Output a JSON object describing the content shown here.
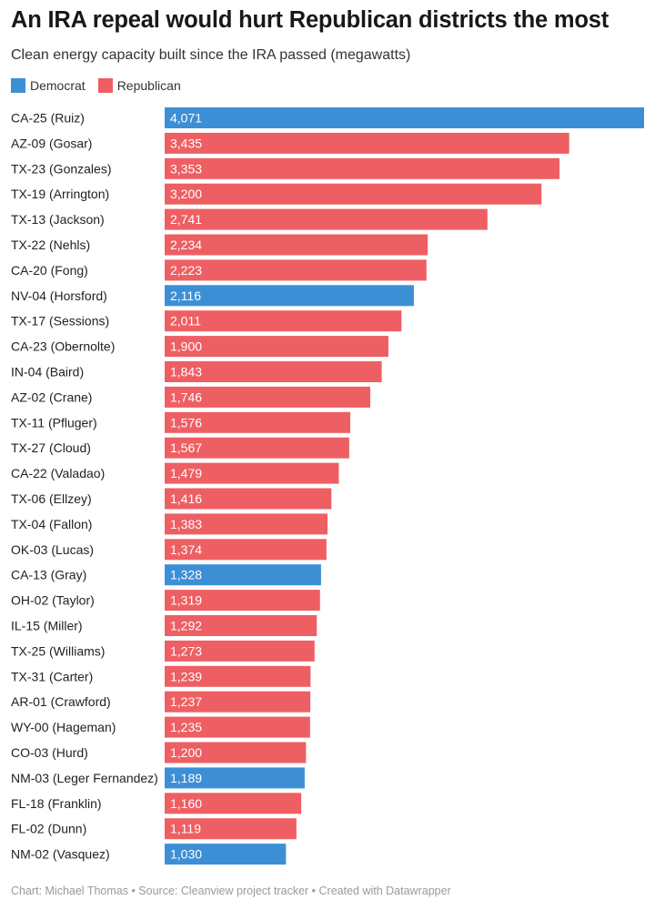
{
  "header": {
    "title": "An IRA repeal would hurt Republican districts the most",
    "subtitle": "Clean energy capacity built since the IRA passed (megawatts)"
  },
  "legend": [
    {
      "label": "Democrat",
      "color": "#3d8fd5"
    },
    {
      "label": "Republican",
      "color": "#ee5f63"
    }
  ],
  "footer": "Chart: Michael Thomas • Source: Cleanview project tracker • Created with Datawrapper",
  "chart_data": {
    "type": "bar",
    "orientation": "horizontal",
    "xlim": [
      0,
      4071
    ],
    "categories": [
      "CA-25 (Ruiz)",
      "AZ-09 (Gosar)",
      "TX-23 (Gonzales)",
      "TX-19 (Arrington)",
      "TX-13 (Jackson)",
      "TX-22 (Nehls)",
      "CA-20 (Fong)",
      "NV-04 (Horsford)",
      "TX-17 (Sessions)",
      "CA-23 (Obernolte)",
      "IN-04 (Baird)",
      "AZ-02 (Crane)",
      "TX-11 (Pfluger)",
      "TX-27 (Cloud)",
      "CA-22 (Valadao)",
      "TX-06 (Ellzey)",
      "TX-04 (Fallon)",
      "OK-03 (Lucas)",
      "CA-13 (Gray)",
      "OH-02 (Taylor)",
      "IL-15 (Miller)",
      "TX-25 (Williams)",
      "TX-31 (Carter)",
      "AR-01 (Crawford)",
      "WY-00 (Hageman)",
      "CO-03 (Hurd)",
      "NM-03 (Leger Fernandez)",
      "FL-18 (Franklin)",
      "FL-02 (Dunn)",
      "NM-02 (Vasquez)"
    ],
    "values": [
      4071,
      3435,
      3353,
      3200,
      2741,
      2234,
      2223,
      2116,
      2011,
      1900,
      1843,
      1746,
      1576,
      1567,
      1479,
      1416,
      1383,
      1374,
      1328,
      1319,
      1292,
      1273,
      1239,
      1237,
      1235,
      1200,
      1189,
      1160,
      1119,
      1030
    ],
    "value_labels": [
      "4,071",
      "3,435",
      "3,353",
      "3,200",
      "2,741",
      "2,234",
      "2,223",
      "2,116",
      "2,011",
      "1,900",
      "1,843",
      "1,746",
      "1,576",
      "1,567",
      "1,479",
      "1,416",
      "1,383",
      "1,374",
      "1,328",
      "1,319",
      "1,292",
      "1,273",
      "1,239",
      "1,237",
      "1,235",
      "1,200",
      "1,189",
      "1,160",
      "1,119",
      "1,030"
    ],
    "party": [
      "Democrat",
      "Republican",
      "Republican",
      "Republican",
      "Republican",
      "Republican",
      "Republican",
      "Democrat",
      "Republican",
      "Republican",
      "Republican",
      "Republican",
      "Republican",
      "Republican",
      "Republican",
      "Republican",
      "Republican",
      "Republican",
      "Democrat",
      "Republican",
      "Republican",
      "Republican",
      "Republican",
      "Republican",
      "Republican",
      "Republican",
      "Democrat",
      "Republican",
      "Republican",
      "Democrat"
    ]
  }
}
